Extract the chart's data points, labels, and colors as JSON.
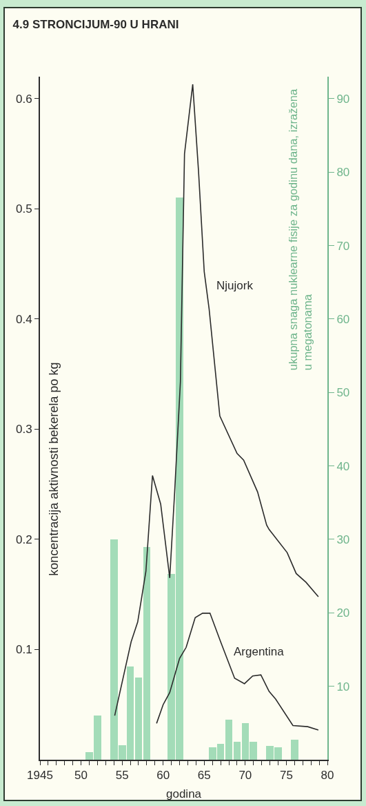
{
  "chart_data": {
    "type": "line",
    "title": "4.9 STRONCIJUM-90 U HRANI",
    "xlabel": "godina",
    "ylabel": "koncentracija aktivnosti bekerela po kg",
    "y2label": "ukupna snaga nuklearne fisije za godinu dana, izražena\nu megatonama",
    "xlim": [
      1945,
      1980
    ],
    "xticks": [
      {
        "value": 1945,
        "label": "1945"
      },
      {
        "value": 1946,
        "label": null
      },
      {
        "value": 1947,
        "label": null
      },
      {
        "value": 1948,
        "label": null
      },
      {
        "value": 1949,
        "label": null
      },
      {
        "value": 1950,
        "label": "50"
      },
      {
        "value": 1951,
        "label": null
      },
      {
        "value": 1952,
        "label": null
      },
      {
        "value": 1953,
        "label": null
      },
      {
        "value": 1954,
        "label": null
      },
      {
        "value": 1955,
        "label": "55"
      },
      {
        "value": 1956,
        "label": null
      },
      {
        "value": 1957,
        "label": null
      },
      {
        "value": 1958,
        "label": null
      },
      {
        "value": 1959,
        "label": null
      },
      {
        "value": 1960,
        "label": "60"
      },
      {
        "value": 1961,
        "label": null
      },
      {
        "value": 1962,
        "label": null
      },
      {
        "value": 1963,
        "label": null
      },
      {
        "value": 1964,
        "label": null
      },
      {
        "value": 1965,
        "label": "65"
      },
      {
        "value": 1966,
        "label": null
      },
      {
        "value": 1967,
        "label": null
      },
      {
        "value": 1968,
        "label": null
      },
      {
        "value": 1969,
        "label": null
      },
      {
        "value": 1970,
        "label": "70"
      },
      {
        "value": 1971,
        "label": null
      },
      {
        "value": 1972,
        "label": null
      },
      {
        "value": 1973,
        "label": null
      },
      {
        "value": 1974,
        "label": null
      },
      {
        "value": 1975,
        "label": "75"
      },
      {
        "value": 1976,
        "label": null
      },
      {
        "value": 1977,
        "label": null
      },
      {
        "value": 1978,
        "label": null
      },
      {
        "value": 1979,
        "label": null
      },
      {
        "value": 1980,
        "label": "80"
      }
    ],
    "ylim": [
      0,
      0.62
    ],
    "yticks": [
      0.1,
      0.2,
      0.3,
      0.4,
      0.5,
      0.6
    ],
    "y2lim": [
      0,
      93
    ],
    "y2ticks": [
      10,
      20,
      30,
      40,
      50,
      60,
      70,
      80,
      90
    ],
    "grid": false,
    "legend": false,
    "series": [
      {
        "type": "bar",
        "axis": "y2",
        "color": "#a3dcb8",
        "x": [
          1951,
          1952,
          1954,
          1955,
          1956,
          1957,
          1958,
          1961,
          1962,
          1966,
          1967,
          1968,
          1969,
          1970,
          1971,
          1973,
          1974,
          1976
        ],
        "values": [
          1,
          6,
          30,
          2,
          12.7,
          11.2,
          29,
          25.3,
          76.5,
          1.7,
          2.2,
          5.5,
          2.4,
          5,
          2.4,
          1.9,
          1.7,
          2.7
        ]
      },
      {
        "name": "Njujork",
        "color": "#2b2b2b",
        "x": [
          1954.1,
          1956.1,
          1956.9,
          1957.9,
          1958.7,
          1959.7,
          1960.8,
          1961.4,
          1962.1,
          1962.6,
          1963.6,
          1964.3,
          1965.0,
          1965.6,
          1966.9,
          1969.0,
          1969.8,
          1971.5,
          1972.6,
          1972.9,
          1975.1,
          1976.2,
          1977.4,
          1978.9
        ],
        "values": [
          0.04,
          0.107,
          0.125,
          0.171,
          0.258,
          0.232,
          0.165,
          0.243,
          0.343,
          0.55,
          0.613,
          0.535,
          0.443,
          0.409,
          0.312,
          0.278,
          0.272,
          0.243,
          0.213,
          0.209,
          0.188,
          0.169,
          0.161,
          0.148
        ]
      },
      {
        "name": "Argentina",
        "color": "#2b2b2b",
        "x": [
          1959.2,
          1960.0,
          1960.8,
          1962.0,
          1962.8,
          1963.9,
          1964.8,
          1965.7,
          1967.0,
          1968.7,
          1969.9,
          1970.9,
          1971.9,
          1972.9,
          1973.7,
          1975.8,
          1977.6,
          1978.9
        ],
        "values": [
          0.033,
          0.05,
          0.061,
          0.092,
          0.102,
          0.129,
          0.133,
          0.133,
          0.107,
          0.074,
          0.069,
          0.076,
          0.077,
          0.062,
          0.055,
          0.031,
          0.03,
          0.027
        ]
      }
    ]
  }
}
